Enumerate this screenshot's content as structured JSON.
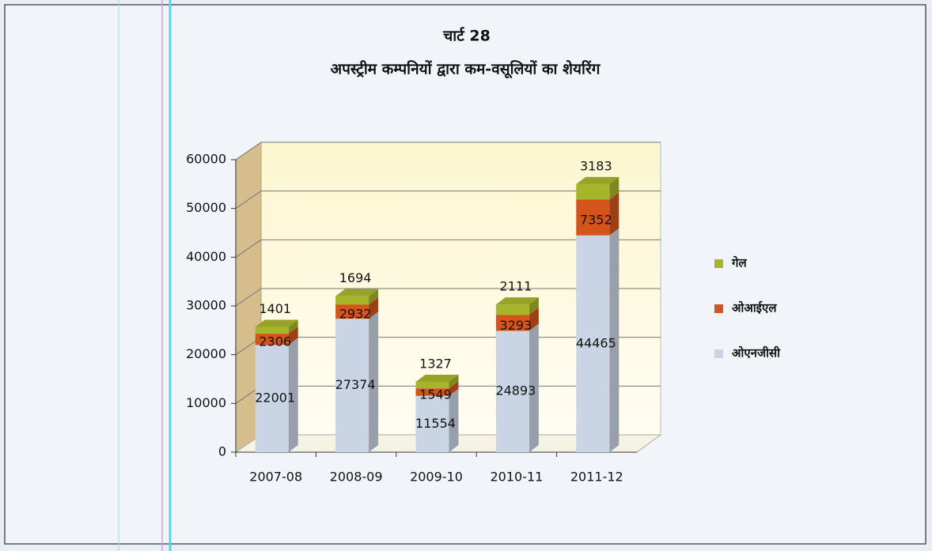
{
  "chart_data": {
    "type": "bar3d_stacked",
    "title": "चार्ट 28",
    "subtitle": "अपस्ट्रीम कम्पनियों द्वारा कम-वसूलियों का शेयरिंग",
    "categories": [
      "2007-08",
      "2008-09",
      "2009-10",
      "2010-11",
      "2011-12"
    ],
    "series": [
      {
        "name": "ओएनजीसी",
        "color": "#c9d4e4",
        "values": [
          22001,
          27374,
          11554,
          24893,
          44465
        ]
      },
      {
        "name": "ओआईएल",
        "color": "#d4541c",
        "values": [
          2306,
          2932,
          1549,
          3293,
          7352
        ]
      },
      {
        "name": "गेल",
        "color": "#a7b52b",
        "values": [
          1401,
          1694,
          1327,
          2111,
          3183
        ]
      }
    ],
    "ylim": [
      0,
      60000
    ],
    "yticks": [
      0,
      10000,
      20000,
      30000,
      40000,
      50000,
      60000
    ],
    "grid": true,
    "legend": "right"
  }
}
